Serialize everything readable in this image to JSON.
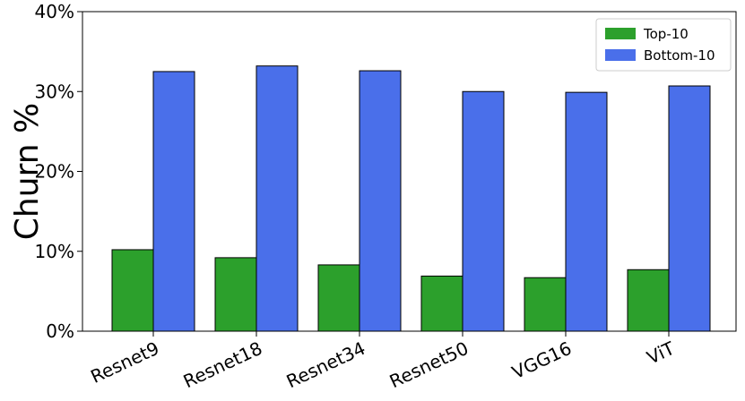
{
  "chart_data": {
    "type": "bar",
    "title": "",
    "xlabel": "",
    "ylabel": "Churn %",
    "ylim": [
      0,
      40
    ],
    "yticks": [
      0,
      10,
      20,
      30,
      40
    ],
    "ytick_labels": [
      "0%",
      "10%",
      "20%",
      "30%",
      "40%"
    ],
    "categories": [
      "Resnet9",
      "Resnet18",
      "Resnet34",
      "Resnet50",
      "VGG16",
      "ViT"
    ],
    "series": [
      {
        "name": "Top-10",
        "color": "#2ca02c",
        "values": [
          10.2,
          9.2,
          8.3,
          6.9,
          6.7,
          7.7
        ]
      },
      {
        "name": "Bottom-10",
        "color": "#4a6fea",
        "values": [
          32.5,
          33.2,
          32.6,
          30.0,
          29.9,
          30.7
        ]
      }
    ],
    "grid": false,
    "legend_position": "top-right",
    "xtick_rotation": "rotated"
  }
}
